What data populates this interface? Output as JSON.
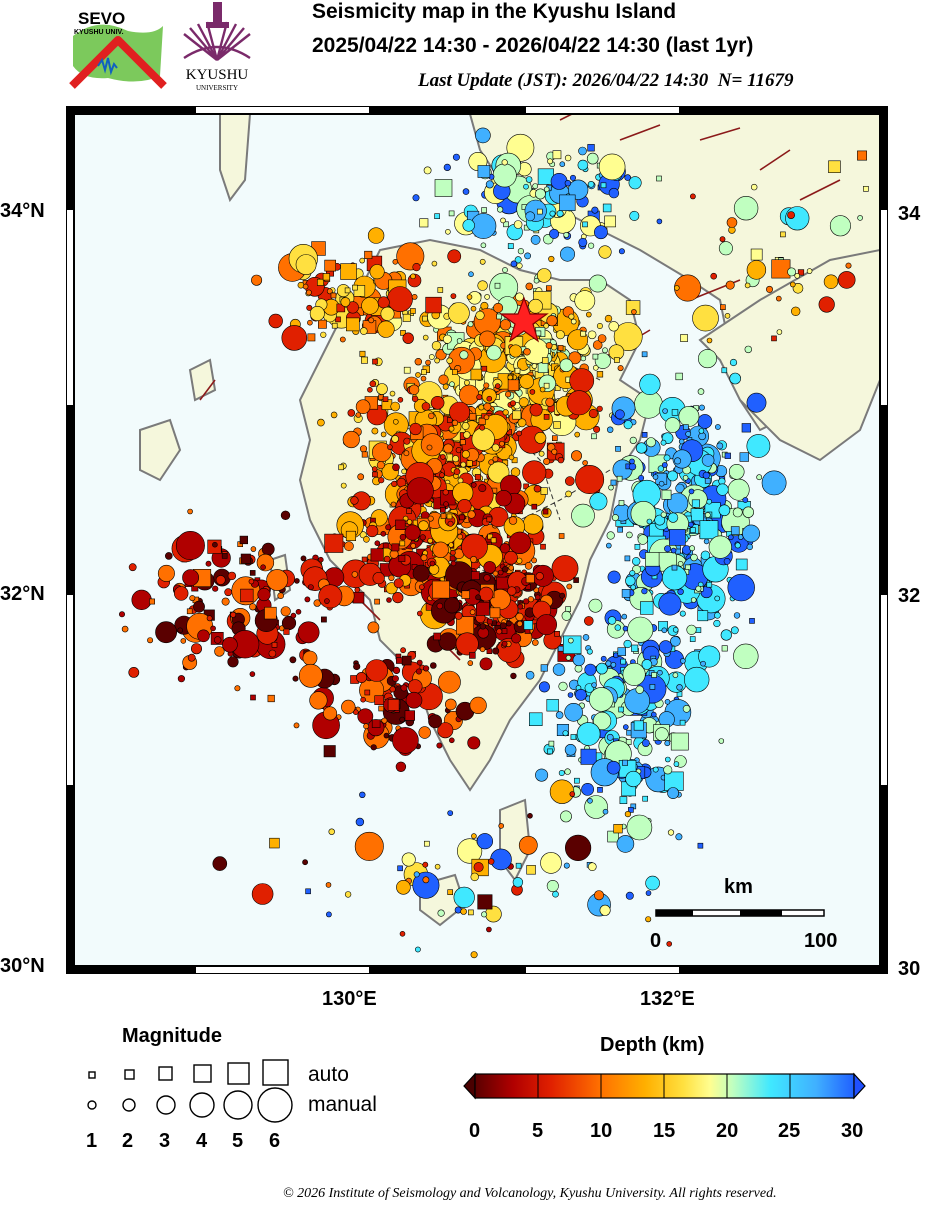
{
  "header": {
    "title": "Seismicity map in the Kyushu Island",
    "period": "2025/04/22 14:30 - 2026/04/22 14:30 (last 1yr)",
    "last_update_label": "Last Update (JST): 2026/04/22 14:30",
    "count_label": "N= 11679"
  },
  "logos": {
    "sevo_text": "SEVO",
    "sevo_sub": "KYUSHU UNIV.",
    "kyushu_text": "KYUSHU",
    "kyushu_sub": "UNIVERSITY"
  },
  "map": {
    "lat_labels": [
      "34°N",
      "32°N",
      "30°N"
    ],
    "lat_labels_right": [
      "34",
      "32",
      "30"
    ],
    "lon_labels": [
      "130°E",
      "132°E"
    ],
    "lat_range": [
      30,
      34.6
    ],
    "lon_range": [
      128,
      133.3
    ],
    "scale_bar": {
      "unit": "km",
      "min_label": "0",
      "max_label": "100"
    },
    "mainshock_marker": "star-icon"
  },
  "legend": {
    "magnitude_title": "Magnitude",
    "auto_label": "auto",
    "manual_label": "manual",
    "magnitudes": [
      "1",
      "2",
      "3",
      "4",
      "5",
      "6"
    ]
  },
  "colorbar": {
    "title": "Depth (km)",
    "ticks": [
      "0",
      "5",
      "10",
      "15",
      "20",
      "25",
      "30"
    ],
    "colors": [
      "#5a0000",
      "#b00000",
      "#e02000",
      "#ff7000",
      "#ffb000",
      "#ffe040",
      "#fffe90",
      "#c0ffc0",
      "#40e8ff",
      "#40b0ff",
      "#2060ff"
    ]
  },
  "footer": {
    "copyright": "© 2026 Institute of Seismology and Volcanology, Kyushu University. All rights reserved."
  }
}
